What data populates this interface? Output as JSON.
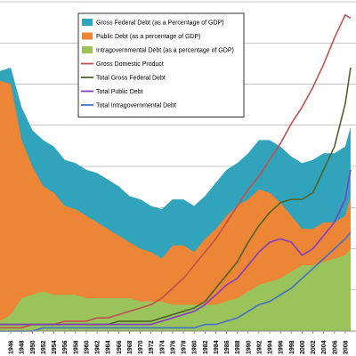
{
  "chart_data": {
    "type": "area",
    "title": "",
    "xlabel": "",
    "ylabel": "",
    "xlim": [
      1944,
      2010
    ],
    "ylim": [
      0,
      1
    ],
    "grid": true,
    "legend_position": "top-center",
    "x": [
      1944,
      1946,
      1948,
      1950,
      1952,
      1954,
      1956,
      1958,
      1960,
      1962,
      1964,
      1966,
      1968,
      1970,
      1972,
      1974,
      1976,
      1978,
      1980,
      1982,
      1984,
      1986,
      1988,
      1990,
      1992,
      1994,
      1996,
      1998,
      2000,
      2002,
      2004,
      2006,
      2008,
      2009
    ],
    "x_tick_labels": [
      "1946",
      "1948",
      "1950",
      "1952",
      "1954",
      "1956",
      "1958",
      "1960",
      "1962",
      "1964",
      "1966",
      "1968",
      "1970",
      "1972",
      "1974",
      "1976",
      "1978",
      "1980",
      "1982",
      "1984",
      "1986",
      "1988",
      "1990",
      "1992",
      "1994",
      "1996",
      "1998",
      "2000",
      "2002",
      "2004",
      "2006",
      "2008"
    ],
    "series": [
      {
        "name": "Gross Federal Debt (as a Percentage of GDP)",
        "kind": "area",
        "color": "#31a3bb",
        "values": [
          0.79,
          0.8,
          0.68,
          0.61,
          0.58,
          0.56,
          0.52,
          0.51,
          0.49,
          0.48,
          0.46,
          0.44,
          0.41,
          0.4,
          0.38,
          0.37,
          0.4,
          0.4,
          0.38,
          0.41,
          0.45,
          0.49,
          0.51,
          0.54,
          0.58,
          0.58,
          0.56,
          0.53,
          0.51,
          0.52,
          0.54,
          0.54,
          0.56,
          0.62
        ]
      },
      {
        "name": "Public Debt (as a percentage of GDP)",
        "kind": "area",
        "color": "#ed8537",
        "values": [
          0.76,
          0.75,
          0.58,
          0.5,
          0.44,
          0.42,
          0.38,
          0.37,
          0.35,
          0.33,
          0.31,
          0.29,
          0.27,
          0.25,
          0.24,
          0.22,
          0.26,
          0.26,
          0.24,
          0.28,
          0.31,
          0.35,
          0.38,
          0.4,
          0.43,
          0.42,
          0.39,
          0.35,
          0.31,
          0.31,
          0.33,
          0.33,
          0.35,
          0.41
        ]
      },
      {
        "name": "Intragovernmental Debt (as a percentage of GDP)",
        "kind": "area",
        "color": "#9bc35b",
        "values": [
          0.03,
          0.05,
          0.1,
          0.11,
          0.12,
          0.11,
          0.11,
          0.11,
          0.1,
          0.1,
          0.1,
          0.1,
          0.1,
          0.09,
          0.09,
          0.09,
          0.08,
          0.08,
          0.08,
          0.08,
          0.08,
          0.09,
          0.1,
          0.12,
          0.14,
          0.15,
          0.16,
          0.18,
          0.2,
          0.2,
          0.21,
          0.22,
          0.23,
          0.25
        ]
      },
      {
        "name": "Gross Domestic Product",
        "kind": "line",
        "color": "#c0504d",
        "values": [
          0.01,
          0.01,
          0.01,
          0.02,
          0.02,
          0.02,
          0.03,
          0.03,
          0.03,
          0.04,
          0.04,
          0.05,
          0.06,
          0.07,
          0.08,
          0.1,
          0.13,
          0.16,
          0.2,
          0.24,
          0.28,
          0.33,
          0.38,
          0.43,
          0.47,
          0.52,
          0.57,
          0.63,
          0.68,
          0.74,
          0.81,
          0.89,
          0.96,
          0.95
        ]
      },
      {
        "name": "Total Gross Federal Debt",
        "kind": "line",
        "color": "#4f6228",
        "values": [
          0.02,
          0.02,
          0.02,
          0.02,
          0.02,
          0.02,
          0.02,
          0.02,
          0.02,
          0.02,
          0.02,
          0.03,
          0.03,
          0.03,
          0.03,
          0.04,
          0.05,
          0.06,
          0.07,
          0.09,
          0.13,
          0.17,
          0.21,
          0.27,
          0.32,
          0.36,
          0.39,
          0.4,
          0.4,
          0.42,
          0.49,
          0.56,
          0.69,
          0.8
        ]
      },
      {
        "name": "Total Public Debt",
        "kind": "line",
        "color": "#7f3fbf",
        "values": [
          0.02,
          0.02,
          0.02,
          0.02,
          0.02,
          0.02,
          0.02,
          0.02,
          0.02,
          0.02,
          0.02,
          0.02,
          0.02,
          0.02,
          0.02,
          0.03,
          0.04,
          0.05,
          0.06,
          0.08,
          0.11,
          0.14,
          0.16,
          0.2,
          0.24,
          0.27,
          0.28,
          0.27,
          0.23,
          0.25,
          0.29,
          0.33,
          0.4,
          0.49
        ]
      },
      {
        "name": "Total Intragovernmental Debt",
        "kind": "line",
        "color": "#4472c4",
        "values": [
          0.0,
          0.0,
          0.0,
          0.0,
          0.01,
          0.01,
          0.01,
          0.01,
          0.01,
          0.01,
          0.01,
          0.01,
          0.01,
          0.01,
          0.01,
          0.01,
          0.01,
          0.01,
          0.01,
          0.02,
          0.02,
          0.03,
          0.04,
          0.06,
          0.08,
          0.09,
          0.11,
          0.13,
          0.16,
          0.19,
          0.22,
          0.25,
          0.28,
          0.3
        ]
      }
    ]
  }
}
